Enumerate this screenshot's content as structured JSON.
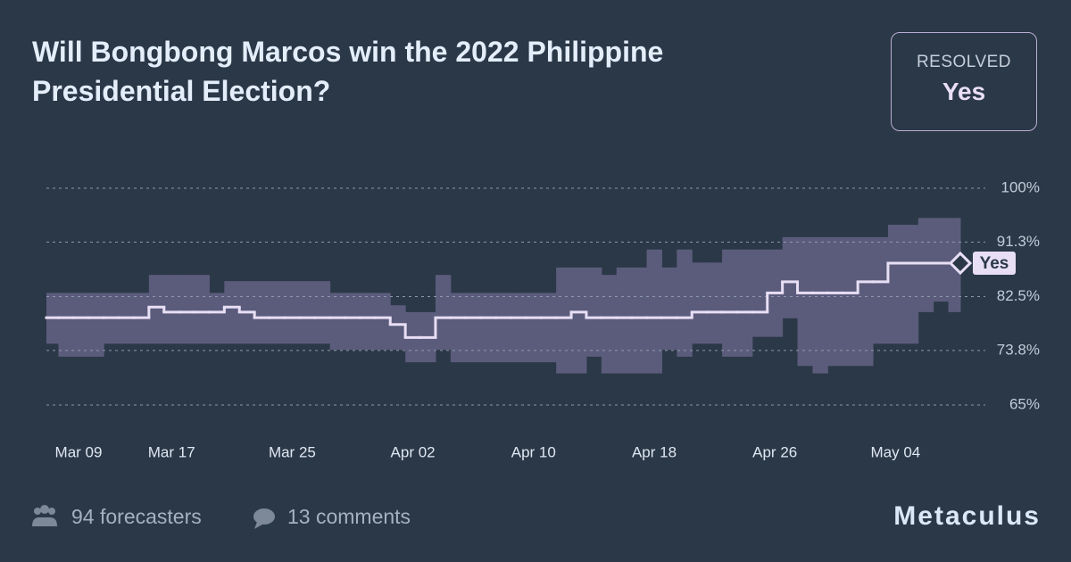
{
  "chart_data": {
    "type": "line",
    "title": "Will Bongbong Marcos win the 2022 Philippine Presidential Election?",
    "categories": [
      "Mar 09",
      null,
      null,
      null,
      null,
      null,
      null,
      null,
      "Mar 17",
      null,
      null,
      null,
      null,
      null,
      null,
      null,
      "Mar 25",
      null,
      null,
      null,
      null,
      null,
      null,
      null,
      "Apr 02",
      null,
      null,
      null,
      null,
      null,
      null,
      null,
      "Apr 10",
      null,
      null,
      null,
      null,
      null,
      null,
      null,
      "Apr 18",
      null,
      null,
      null,
      null,
      null,
      null,
      null,
      "Apr 26",
      null,
      null,
      null,
      null,
      null,
      null,
      null,
      "May 04",
      null,
      null,
      null,
      null
    ],
    "values": [
      79.1,
      79.1,
      79.1,
      79.1,
      79.1,
      79.1,
      79.1,
      80.8,
      80.0,
      80.0,
      80.0,
      80.0,
      80.8,
      80.0,
      79.1,
      79.1,
      79.1,
      79.1,
      79.1,
      79.1,
      79.1,
      79.1,
      79.1,
      78.0,
      75.9,
      75.9,
      79.1,
      79.1,
      79.1,
      79.1,
      79.1,
      79.1,
      79.1,
      79.1,
      79.1,
      80.0,
      79.1,
      79.1,
      79.1,
      79.1,
      79.1,
      79.1,
      79.1,
      80.0,
      80.0,
      80.0,
      80.0,
      80.0,
      83.1,
      84.9,
      83.1,
      83.1,
      83.1,
      83.1,
      84.9,
      84.9,
      87.9,
      87.9,
      87.9,
      87.9,
      87.9
    ],
    "upper": [
      83.1,
      83.1,
      83.1,
      83.1,
      83.1,
      83.1,
      83.1,
      86.0,
      86.0,
      86.0,
      86.0,
      83.1,
      85.0,
      85.0,
      85.0,
      85.0,
      85.0,
      85.0,
      85.0,
      83.1,
      83.1,
      83.1,
      83.1,
      81.1,
      80.0,
      80.0,
      86.0,
      83.1,
      83.1,
      83.1,
      83.1,
      83.1,
      83.1,
      83.1,
      87.2,
      87.2,
      87.2,
      86.0,
      87.2,
      87.2,
      90.1,
      87.2,
      90.1,
      88.0,
      88.0,
      90.1,
      90.1,
      90.1,
      90.1,
      92.1,
      92.1,
      92.1,
      92.1,
      92.1,
      92.1,
      92.1,
      94.1,
      94.1,
      95.2,
      95.2,
      95.2
    ],
    "lower": [
      74.9,
      72.8,
      72.8,
      72.8,
      74.9,
      74.9,
      74.9,
      74.9,
      74.9,
      74.9,
      74.9,
      74.9,
      74.9,
      74.9,
      74.9,
      74.9,
      74.9,
      74.9,
      74.9,
      73.9,
      73.9,
      73.9,
      73.9,
      73.9,
      71.9,
      71.9,
      73.9,
      71.9,
      71.9,
      71.9,
      71.9,
      71.9,
      71.9,
      71.9,
      70.1,
      70.1,
      72.8,
      70.1,
      70.1,
      70.1,
      70.1,
      73.9,
      72.8,
      74.9,
      74.9,
      72.8,
      72.8,
      76.0,
      76.0,
      79.0,
      71.3,
      70.1,
      71.3,
      71.3,
      71.3,
      74.9,
      74.9,
      74.9,
      80.0,
      81.7,
      80.0
    ],
    "color": "#e8dff5",
    "band_color": "#5b5c7c",
    "ylim": [
      65,
      100
    ],
    "yticks": [
      {
        "value": 65,
        "label": "65%"
      },
      {
        "value": 73.8,
        "label": "73.8%"
      },
      {
        "value": 82.5,
        "label": "82.5%"
      },
      {
        "value": 91.3,
        "label": "91.3%"
      },
      {
        "value": 100,
        "label": "100%"
      }
    ],
    "grid": true,
    "marker_label": "Yes"
  },
  "resolution": {
    "label": "RESOLVED",
    "value": "Yes"
  },
  "footer": {
    "forecasters": "94 forecasters",
    "comments": "13 comments",
    "brand": "Metaculus"
  }
}
